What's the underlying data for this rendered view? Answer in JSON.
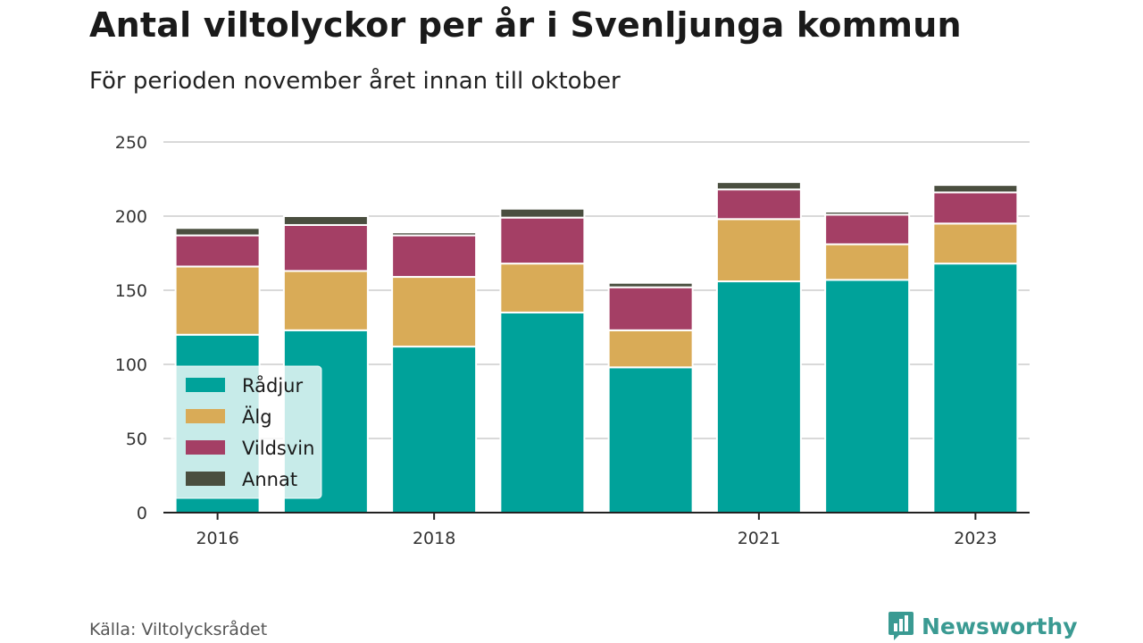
{
  "title": "Antal viltolyckor per år i Svenljunga kommun",
  "subtitle": "För perioden november året innan till oktober",
  "source": "Källa: Viltolycksrådet",
  "brand": "Newsworthy",
  "colors": {
    "rådjur": "#00a29a",
    "älg": "#d9ab57",
    "vildsvin": "#a43f65",
    "annat": "#4a4e3f",
    "grid": "#d9d9d9",
    "axis": "#222222",
    "brand": "#3a9a92"
  },
  "chart_data": {
    "type": "bar",
    "stacked": true,
    "categories": [
      "2016",
      "2017",
      "2018",
      "2019",
      "2020",
      "2021",
      "2022",
      "2023"
    ],
    "x_tick_labels": [
      "2016",
      "",
      "2018",
      "",
      "",
      "2021",
      "",
      "2023"
    ],
    "series": [
      {
        "name": "Rådjur",
        "values": [
          120,
          123,
          112,
          135,
          98,
          156,
          157,
          168
        ]
      },
      {
        "name": "Älg",
        "values": [
          46,
          40,
          47,
          33,
          25,
          42,
          24,
          27
        ]
      },
      {
        "name": "Vildsvin",
        "values": [
          21,
          31,
          28,
          31,
          29,
          20,
          20,
          21
        ]
      },
      {
        "name": "Annat",
        "values": [
          5,
          6,
          2,
          6,
          3,
          5,
          2,
          5
        ]
      }
    ],
    "ylim": [
      0,
      250
    ],
    "y_ticks": [
      0,
      50,
      100,
      150,
      200,
      250
    ],
    "grid": true,
    "legend_position": "bottom-left inside"
  }
}
